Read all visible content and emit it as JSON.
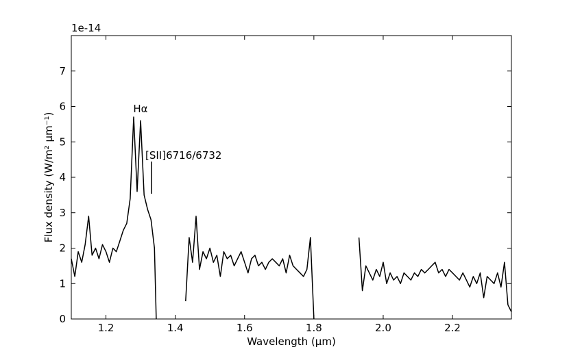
{
  "chart_data": {
    "type": "line",
    "y_offset_label": "1e-14",
    "xlabel": "Wavelength (μm)",
    "ylabel": "Flux density (W/m² μm⁻¹)",
    "annotations": [
      "Hα",
      "[SII]6716/6732"
    ],
    "xlim": [
      1.1,
      2.37
    ],
    "ylim": [
      0,
      8
    ],
    "xticks": [
      1.2,
      1.4,
      1.6,
      1.8,
      {
        "value": 2,
        "label": "2.0"
      },
      2.2
    ],
    "yticks": [
      0,
      1,
      2,
      3,
      4,
      5,
      6,
      7
    ],
    "x": [
      1.1,
      1.11,
      1.12,
      1.13,
      1.14,
      1.15,
      1.16,
      1.17,
      1.18,
      1.19,
      1.2,
      1.21,
      1.22,
      1.23,
      1.24,
      1.25,
      1.26,
      1.27,
      1.28,
      1.29,
      1.3,
      1.31,
      1.32,
      1.33,
      1.34,
      1.345,
      1.39,
      1.43,
      1.44,
      1.45,
      1.46,
      1.47,
      1.48,
      1.49,
      1.5,
      1.51,
      1.52,
      1.53,
      1.54,
      1.55,
      1.56,
      1.57,
      1.58,
      1.59,
      1.6,
      1.61,
      1.62,
      1.63,
      1.64,
      1.65,
      1.66,
      1.67,
      1.68,
      1.69,
      1.7,
      1.71,
      1.72,
      1.73,
      1.74,
      1.75,
      1.76,
      1.77,
      1.78,
      1.79,
      1.8,
      1.87,
      1.93,
      1.94,
      1.95,
      1.96,
      1.97,
      1.98,
      1.99,
      2.0,
      2.01,
      2.02,
      2.03,
      2.04,
      2.05,
      2.06,
      2.07,
      2.08,
      2.09,
      2.1,
      2.11,
      2.12,
      2.13,
      2.14,
      2.15,
      2.16,
      2.17,
      2.18,
      2.19,
      2.2,
      2.21,
      2.22,
      2.23,
      2.24,
      2.25,
      2.26,
      2.27,
      2.28,
      2.29,
      2.3,
      2.31,
      2.32,
      2.33,
      2.34,
      2.35,
      2.36,
      2.37
    ],
    "series": [
      {
        "color": "#000000",
        "values": [
          1.7,
          1.2,
          1.9,
          1.6,
          2.1,
          2.9,
          1.8,
          2.0,
          1.7,
          2.1,
          1.9,
          1.6,
          2.0,
          1.9,
          2.2,
          2.5,
          2.7,
          3.4,
          5.7,
          3.6,
          5.6,
          3.5,
          3.1,
          2.8,
          2.0,
          0,
          null,
          0.5,
          2.3,
          1.6,
          2.9,
          1.4,
          1.9,
          1.7,
          2.0,
          1.6,
          1.8,
          1.2,
          1.9,
          1.7,
          1.8,
          1.5,
          1.7,
          1.9,
          1.6,
          1.3,
          1.7,
          1.8,
          1.5,
          1.6,
          1.4,
          1.6,
          1.7,
          1.6,
          1.5,
          1.7,
          1.3,
          1.8,
          1.5,
          1.4,
          1.3,
          1.2,
          1.4,
          2.3,
          0,
          null,
          2.3,
          0.8,
          1.5,
          1.3,
          1.1,
          1.4,
          1.2,
          1.6,
          1.0,
          1.3,
          1.1,
          1.2,
          1.0,
          1.3,
          1.2,
          1.1,
          1.3,
          1.2,
          1.4,
          1.3,
          1.4,
          1.5,
          1.6,
          1.3,
          1.4,
          1.2,
          1.4,
          1.3,
          1.2,
          1.1,
          1.3,
          1.1,
          0.9,
          1.2,
          1.0,
          1.3,
          0.6,
          1.2,
          1.1,
          1.0,
          1.3,
          0.9,
          1.6,
          0.4,
          0.2
        ]
      }
    ]
  }
}
